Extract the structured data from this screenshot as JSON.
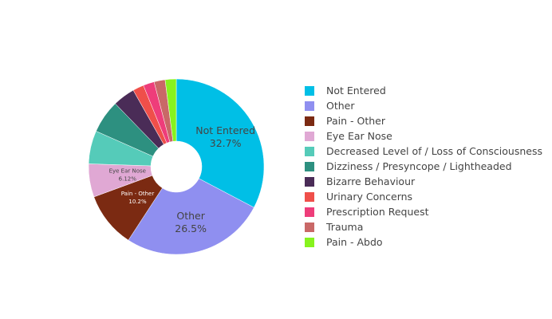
{
  "chart_data": {
    "type": "pie",
    "hole": true,
    "legend_position": "right",
    "slices": [
      {
        "label": "Not Entered",
        "percent": 32.7,
        "color": "#00bfe6",
        "text_label": "Not Entered",
        "text_value": "32.7%"
      },
      {
        "label": "Other",
        "percent": 26.5,
        "color": "#8f8ff0",
        "text_label": "Other",
        "text_value": "26.5%"
      },
      {
        "label": "Pain - Other",
        "percent": 10.2,
        "color": "#7b2a12",
        "text_label": "Pain - Other",
        "text_value": "10.2%"
      },
      {
        "label": "Eye Ear Nose",
        "percent": 6.12,
        "color": "#e0a8d4",
        "text_label": "Eye Ear Nose",
        "text_value": "6.12%"
      },
      {
        "label": "Decreased Level of / Loss of Consciousness",
        "percent": 6.12,
        "color": "#55cbb9",
        "text_label": "",
        "text_value": ""
      },
      {
        "label": "Dizziness / Presyncope / Lightheaded",
        "percent": 6.12,
        "color": "#2d9080",
        "text_label": "",
        "text_value": ""
      },
      {
        "label": "Bizarre Behaviour",
        "percent": 4.08,
        "color": "#4a2c57",
        "text_label": "",
        "text_value": ""
      },
      {
        "label": "Urinary Concerns",
        "percent": 2.04,
        "color": "#ef4f4a",
        "text_label": "",
        "text_value": ""
      },
      {
        "label": "Prescription Request",
        "percent": 2.04,
        "color": "#ee3d7a",
        "text_label": "",
        "text_value": ""
      },
      {
        "label": "Trauma",
        "percent": 2.04,
        "color": "#c96867",
        "text_label": "",
        "text_value": ""
      },
      {
        "label": "Pain - Abdo",
        "percent": 2.04,
        "color": "#87f31e",
        "text_label": "",
        "text_value": ""
      }
    ]
  }
}
